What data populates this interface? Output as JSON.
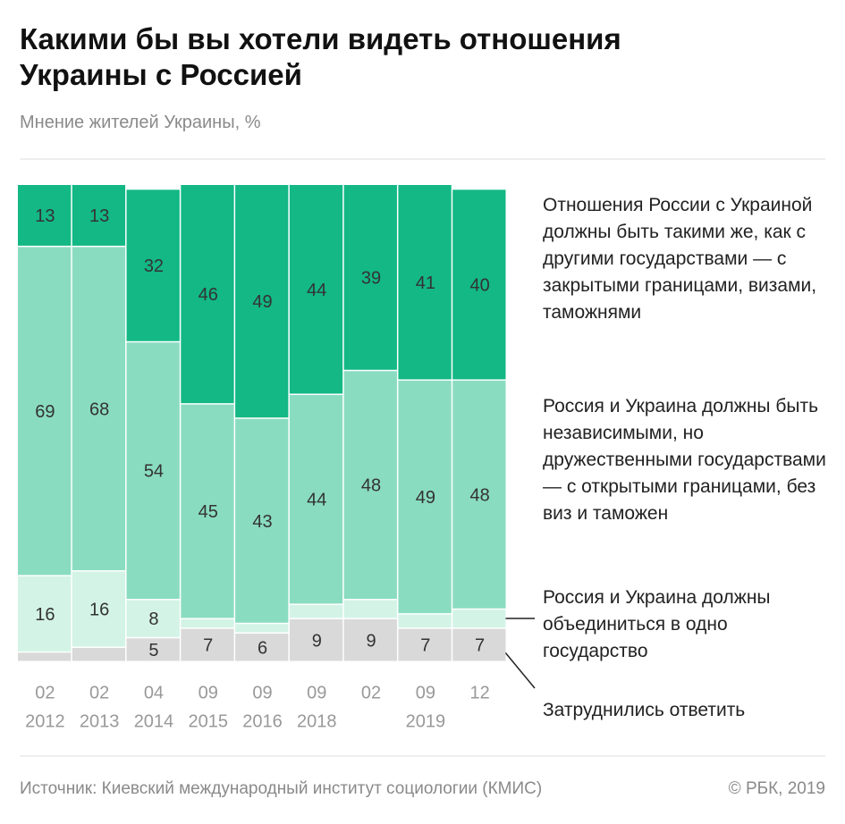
{
  "chart_data": {
    "type": "stacked_bar",
    "title": "Какими бы вы хотели видеть отношения Украины с Россией",
    "subtitle": "Мнение жителей Украины, %",
    "source": "Источник: Киевский международный институт социологии (КМИС)",
    "credit": "© РБК, 2019",
    "categories": [
      "02",
      "02",
      "04",
      "09",
      "09",
      "09",
      "02",
      "09",
      "12"
    ],
    "years": [
      "2012",
      "2013",
      "2014",
      "2015",
      "2016",
      "2018",
      null,
      "2019",
      null
    ],
    "ylim": [
      0,
      100
    ],
    "series": [
      {
        "name": "Отношения России с Украиной должны быть такими же, как с другими государствами — с закрытыми границами, визами, таможнями",
        "color": "#13b884",
        "values": [
          13,
          13,
          32,
          46,
          49,
          44,
          39,
          41,
          40
        ]
      },
      {
        "name": "Россия и Украина должны быть независимыми, но дружественными государствами — с открытыми границами, без виз и таможен",
        "color": "#8adcc0",
        "values": [
          69,
          68,
          54,
          45,
          43,
          44,
          48,
          49,
          48
        ]
      },
      {
        "name": "Россия и Украина должны объединиться в одно государство",
        "color": "#d3f3e6",
        "values": [
          16,
          16,
          8,
          2,
          2,
          3,
          4,
          3,
          4
        ]
      },
      {
        "name": "Затруднились ответить",
        "color": "#d9d9d9",
        "values": [
          2,
          3,
          5,
          7,
          6,
          9,
          9,
          7,
          7
        ]
      }
    ]
  }
}
